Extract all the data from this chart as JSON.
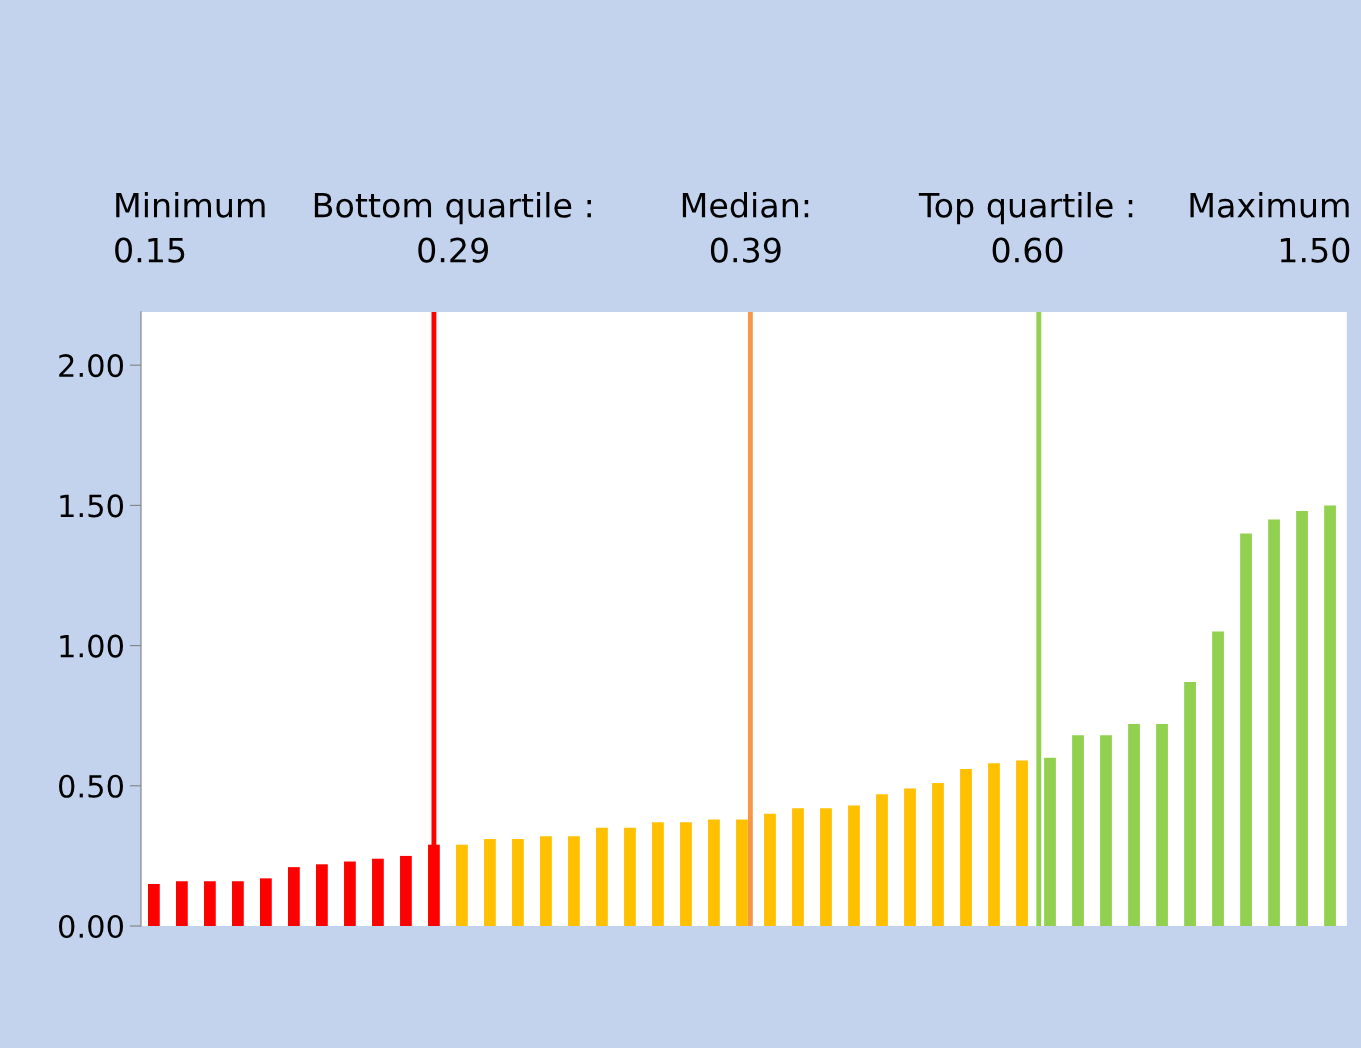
{
  "chart_data": {
    "type": "bar",
    "categories": [
      null,
      null,
      null,
      null,
      null,
      null,
      null,
      null,
      null,
      null,
      null,
      null,
      null,
      null,
      null,
      null,
      null,
      null,
      null,
      null,
      null,
      null,
      null,
      null,
      null,
      null,
      null,
      null,
      null,
      null,
      null,
      null,
      null,
      null,
      null,
      null,
      null,
      null,
      null,
      null,
      null,
      null,
      null
    ],
    "values": [
      0.15,
      0.16,
      0.16,
      0.16,
      0.17,
      0.21,
      0.22,
      0.23,
      0.24,
      0.25,
      0.29,
      0.29,
      0.31,
      0.31,
      0.32,
      0.32,
      0.35,
      0.35,
      0.37,
      0.37,
      0.38,
      0.38,
      0.4,
      0.42,
      0.42,
      0.43,
      0.47,
      0.49,
      0.51,
      0.56,
      0.58,
      0.59,
      0.6,
      0.68,
      0.68,
      0.72,
      0.72,
      0.87,
      1.05,
      1.4,
      1.45,
      1.48,
      1.5
    ],
    "colors": [
      "#ff0000",
      "#ff0000",
      "#ff0000",
      "#ff0000",
      "#ff0000",
      "#ff0000",
      "#ff0000",
      "#ff0000",
      "#ff0000",
      "#ff0000",
      "#ff0000",
      "#ffc000",
      "#ffc000",
      "#ffc000",
      "#ffc000",
      "#ffc000",
      "#ffc000",
      "#ffc000",
      "#ffc000",
      "#ffc000",
      "#ffc000",
      "#ffc000",
      "#ffc000",
      "#ffc000",
      "#ffc000",
      "#ffc000",
      "#ffc000",
      "#ffc000",
      "#ffc000",
      "#ffc000",
      "#ffc000",
      "#ffc000",
      "#92d050",
      "#92d050",
      "#92d050",
      "#92d050",
      "#92d050",
      "#92d050",
      "#92d050",
      "#92d050",
      "#92d050",
      "#92d050",
      "#92d050"
    ],
    "ylim": [
      0,
      2.19
    ],
    "yticks": [
      {
        "value": 0,
        "label": "0.00"
      },
      {
        "value": 0.5,
        "label": "0.50"
      },
      {
        "value": 1,
        "label": "1.00"
      },
      {
        "value": 1.5,
        "label": "1.50"
      },
      {
        "value": 2,
        "label": "2.00"
      }
    ],
    "tick_labels": "y",
    "grid": false,
    "legend": false,
    "annotations": [
      "Minimum\n0.15",
      "Bottom quartile :\n0.29",
      "Median:\n0.39",
      "Top quartile :\n0.60",
      "Maximum\n1.50"
    ]
  }
}
